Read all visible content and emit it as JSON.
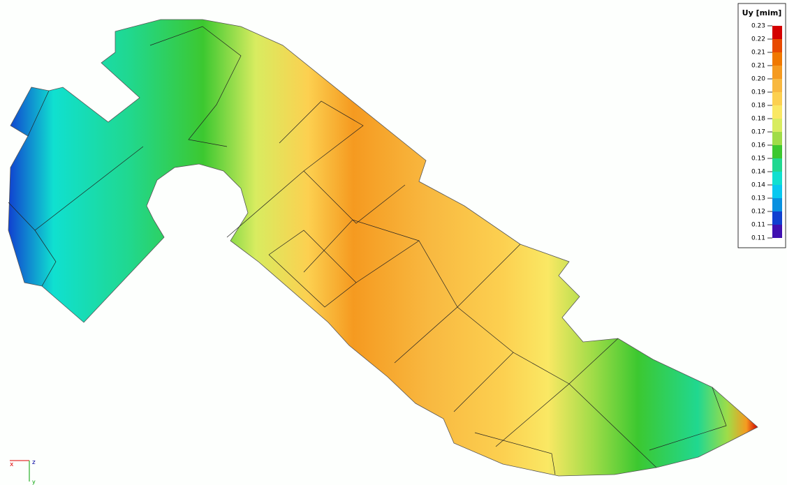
{
  "legend": {
    "title": "Uy [mim]",
    "labels": [
      "0.23",
      "0.22",
      "0.21",
      "0.21",
      "0.20",
      "0.19",
      "0.18",
      "0.18",
      "0.17",
      "0.16",
      "0.15",
      "0.14",
      "0.14",
      "0.13",
      "0.12",
      "0.11",
      "0.11"
    ],
    "colors": [
      "#d40000",
      "#e84a00",
      "#f07800",
      "#f59a20",
      "#f8b840",
      "#fcd050",
      "#fae864",
      "#d8ec60",
      "#a0dc48",
      "#3cc830",
      "#20d890",
      "#10e0d0",
      "#08c8f0",
      "#0890e0",
      "#1040d0",
      "#4010b0"
    ]
  },
  "axes": {
    "x": "x",
    "z": "z",
    "y": "y"
  }
}
